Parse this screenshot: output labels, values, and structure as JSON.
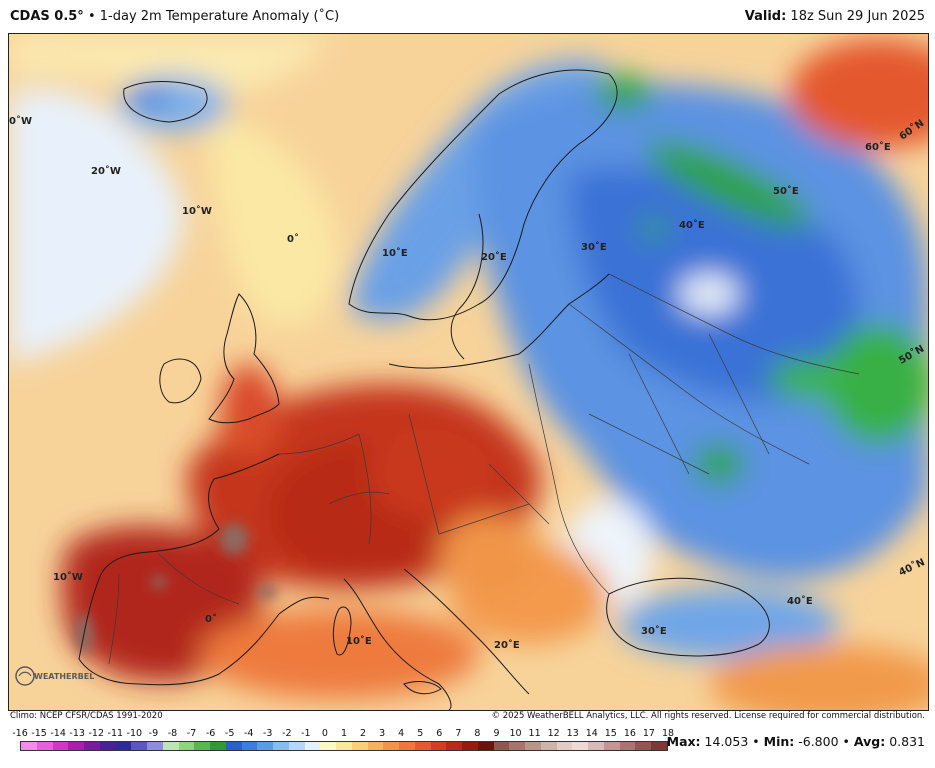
{
  "header": {
    "model": "CDAS 0.5°",
    "separator": "•",
    "product": "1-day 2m Temperature Anomaly (˚C)",
    "valid_label": "Valid:",
    "valid_value": "18z Sun 29 Jun 2025"
  },
  "map": {
    "graticule_labels": [
      {
        "text": "0˚W",
        "kind": "lon"
      },
      {
        "text": "20˚W",
        "kind": "lon"
      },
      {
        "text": "10˚W",
        "kind": "lon"
      },
      {
        "text": "0˚",
        "kind": "lon"
      },
      {
        "text": "10˚E",
        "kind": "lon"
      },
      {
        "text": "20˚E",
        "kind": "lon"
      },
      {
        "text": "30˚E",
        "kind": "lon"
      },
      {
        "text": "40˚E",
        "kind": "lon"
      },
      {
        "text": "50˚E",
        "kind": "lon"
      },
      {
        "text": "60˚E",
        "kind": "lon"
      },
      {
        "text": "60˚N",
        "kind": "lat"
      },
      {
        "text": "50˚N",
        "kind": "lat"
      },
      {
        "text": "40˚N",
        "kind": "lat"
      },
      {
        "text": "10˚W",
        "kind": "lon"
      },
      {
        "text": "0˚",
        "kind": "lon"
      },
      {
        "text": "10˚E",
        "kind": "lon"
      },
      {
        "text": "20˚E",
        "kind": "lon"
      },
      {
        "text": "30˚E",
        "kind": "lon"
      },
      {
        "text": "40˚E",
        "kind": "lon"
      }
    ],
    "logo_text": "WEATHERBELL"
  },
  "footer": {
    "climo": "Climo: NCEP CFSR/CDAS 1991-2020",
    "copyright": "© 2025 WeatherBELL Analytics, LLC. All rights reserved. License required for commercial distribution."
  },
  "colorbar": {
    "ticks": [
      "-16",
      "-15",
      "-14",
      "-13",
      "-12",
      "-11",
      "-10",
      "-9",
      "-8",
      "-7",
      "-6",
      "-5",
      "-4",
      "-3",
      "-2",
      "-1",
      "0",
      "1",
      "2",
      "3",
      "4",
      "5",
      "6",
      "7",
      "8",
      "9",
      "10",
      "11",
      "12",
      "13",
      "14",
      "15",
      "16",
      "17",
      "18"
    ],
    "colors": [
      "#f48be8",
      "#e65fdc",
      "#cf37c9",
      "#a81eb0",
      "#7a1aa0",
      "#4b1e9a",
      "#2e2a9c",
      "#5b56c6",
      "#8f8ce0",
      "#bfe3b6",
      "#8fd27f",
      "#58b84f",
      "#2f9a37",
      "#2a5fcf",
      "#3a7ee0",
      "#5b9ce8",
      "#86bdf0",
      "#b7d7f6",
      "#e6f0fb",
      "#fbf7c6",
      "#fbe79a",
      "#f9cf77",
      "#f6b25f",
      "#f39549",
      "#ee773a",
      "#e4592d",
      "#d13e22",
      "#b72a18",
      "#941b12",
      "#6e120c",
      "#8a5a4e",
      "#a2766a",
      "#b99489",
      "#cfb2a8",
      "#e1cdc6",
      "#eddad5",
      "#d9b9b9",
      "#c49595",
      "#ad7373",
      "#955454",
      "#7d3838"
    ]
  },
  "stats": {
    "max_label": "Max:",
    "max_value": "14.053",
    "min_label": "Min:",
    "min_value": "-6.800",
    "avg_label": "Avg:",
    "avg_value": "0.831",
    "sep": "•"
  }
}
